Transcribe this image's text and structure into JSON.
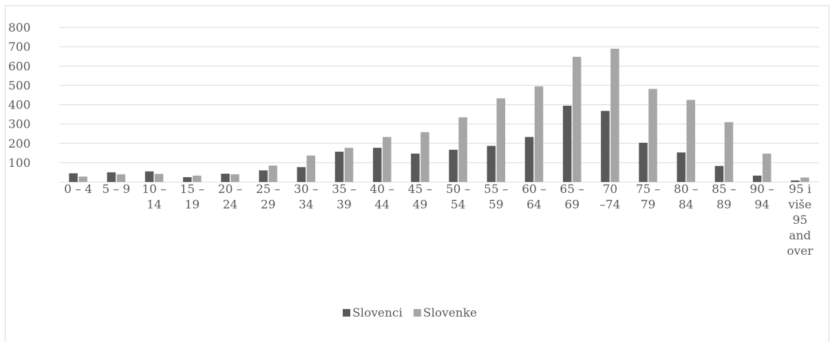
{
  "chart_data": {
    "type": "bar",
    "title": "",
    "xlabel": "",
    "ylabel": "",
    "ylim": [
      0,
      800
    ],
    "yticks": [
      100,
      200,
      300,
      400,
      500,
      600,
      700,
      800
    ],
    "grid": true,
    "legend_position": "bottom",
    "categories": [
      [
        "0 – 4"
      ],
      [
        "5 – 9"
      ],
      [
        "10 –",
        "14"
      ],
      [
        "15 –",
        "19"
      ],
      [
        "20 –",
        "24"
      ],
      [
        "25 –",
        "29"
      ],
      [
        "30 –",
        "34"
      ],
      [
        "35 –",
        "39"
      ],
      [
        "40 –",
        "44"
      ],
      [
        "45 –",
        "49"
      ],
      [
        "50 –",
        "54"
      ],
      [
        "55 –",
        "59"
      ],
      [
        "60 –",
        "64"
      ],
      [
        "65 –",
        "69"
      ],
      [
        "70",
        "–74"
      ],
      [
        "75 –",
        "79"
      ],
      [
        "80 –",
        "84"
      ],
      [
        "85 –",
        "89"
      ],
      [
        "90 –",
        "94"
      ],
      [
        "95 i",
        "više",
        "95",
        "and",
        "over"
      ]
    ],
    "series": [
      {
        "name": "Slovenci",
        "color": "#595959",
        "values": [
          45,
          50,
          55,
          25,
          43,
          60,
          77,
          157,
          177,
          147,
          167,
          187,
          233,
          395,
          368,
          203,
          153,
          83,
          33,
          8
        ]
      },
      {
        "name": "Slovenke",
        "color": "#a6a6a6",
        "values": [
          28,
          40,
          42,
          33,
          40,
          85,
          137,
          177,
          233,
          258,
          335,
          433,
          495,
          648,
          690,
          482,
          425,
          310,
          147,
          23
        ]
      }
    ]
  }
}
